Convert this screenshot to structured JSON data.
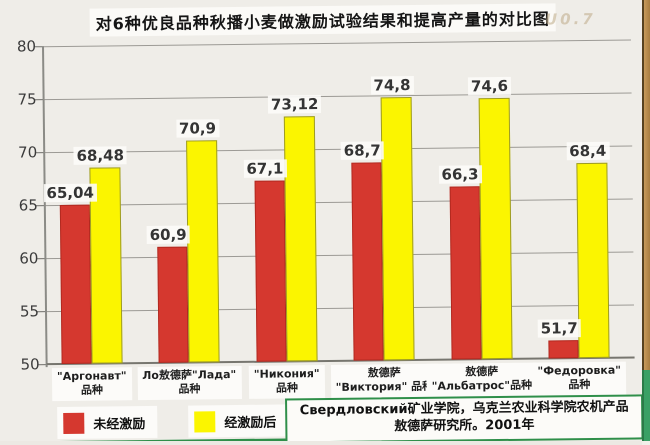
{
  "title": "对6种优良品种秋播小麦做激励试验结果和提高产量的对比图",
  "watermark": "U0.7",
  "chart_data": {
    "type": "bar",
    "title": "对6种优良品种秋播小麦做激励试验结果和提高产量的对比图",
    "categories": [
      "\"Аргонавт\" 品种",
      "Ло敖德萨\"Лада\" 品种",
      "\"Никония\" 品种",
      "敖德萨 \"Виктория\" 品种",
      "敖德萨 \"Альбатрос\"品种",
      "\"Федоровка\" 品种"
    ],
    "category_lines": [
      [
        "\"Аргонавт\"",
        "品种"
      ],
      [
        "Ло敖德萨\"Лада\"",
        "品种"
      ],
      [
        "\"Никония\"",
        "品种"
      ],
      [
        "敖德萨",
        "\"Виктория\" 品种"
      ],
      [
        "敖德萨",
        "\"Альбатрос\"品种"
      ],
      [
        "\"Федоровка\"",
        "品种"
      ]
    ],
    "series": [
      {
        "name": "未经激励",
        "color": "#d5382f",
        "values": [
          65.04,
          60.9,
          67.1,
          68.7,
          66.3,
          51.7
        ],
        "value_labels": [
          "65,04",
          "60,9",
          "67,1",
          "68,7",
          "66,3",
          "51,7"
        ]
      },
      {
        "name": "经激励后",
        "color": "#fbf500",
        "values": [
          68.48,
          70.9,
          73.12,
          74.8,
          74.6,
          68.4
        ],
        "value_labels": [
          "68,48",
          "70,9",
          "73,12",
          "74,8",
          "74,6",
          "68,4"
        ]
      }
    ],
    "ylim": [
      50,
      80
    ],
    "yticks": [
      50,
      55,
      60,
      65,
      70,
      75,
      80
    ],
    "grid": true,
    "legend_position": "bottom-left",
    "xlabel": "",
    "ylabel": ""
  },
  "legend": {
    "items": [
      {
        "label": "未经激励",
        "color": "#d5382f"
      },
      {
        "label": "经激励后",
        "color": "#fbf500"
      }
    ]
  },
  "source_note": {
    "line1": "Свердловский矿业学院，乌克兰农业科学院农机产品",
    "line2": "敖德萨研究所。2001年"
  },
  "colors": {
    "bar_red": "#d5382f",
    "bar_yellow": "#fbf500",
    "accent_green": "#2f8f4a",
    "edge_brown": "#b98a4e",
    "background": "#efede8"
  }
}
